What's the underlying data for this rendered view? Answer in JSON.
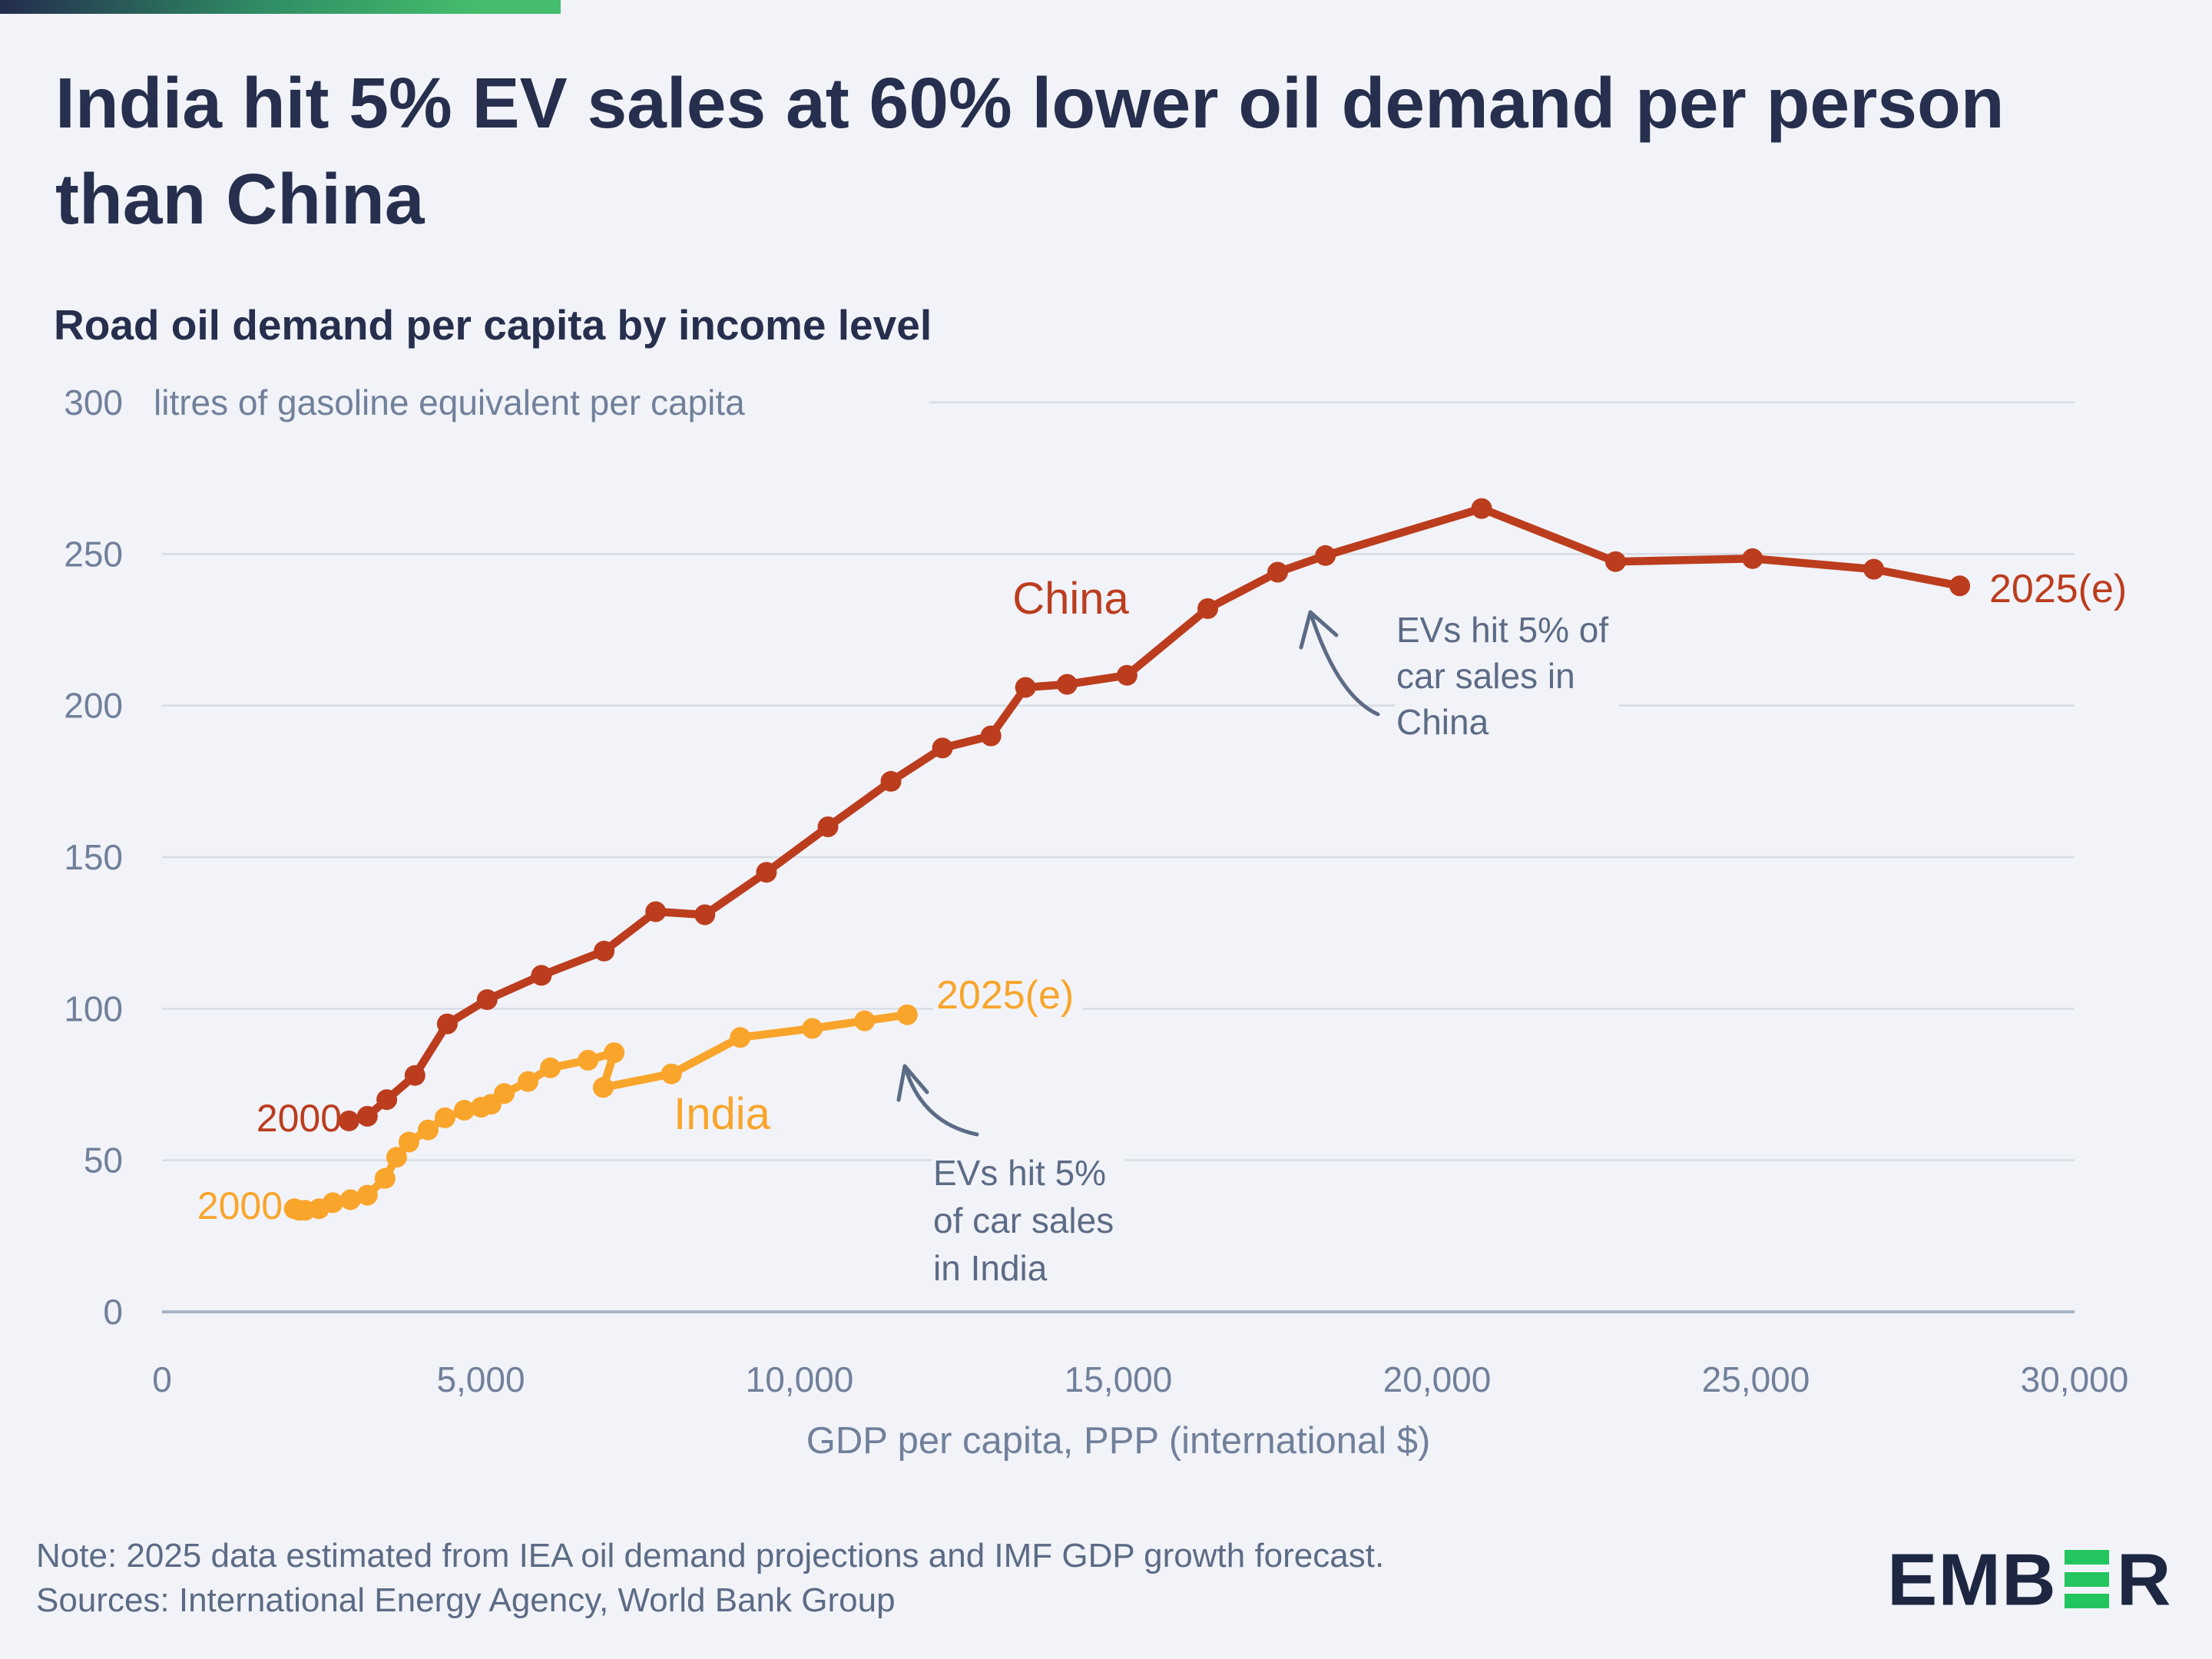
{
  "header": {
    "title": "India hit 5% EV sales at 60% lower oil demand per person\nthan China",
    "subtitle": "Road oil demand per capita by income level"
  },
  "chart_data": {
    "type": "line",
    "title": "India hit 5% EV sales at 60% lower oil demand per person than China",
    "subtitle": "Road oil demand per capita by income level",
    "unit_label": "litres of gasoline equivalent per capita",
    "xlabel": "GDP per capita, PPP (international $)",
    "xlim": [
      0,
      30000
    ],
    "ylim": [
      0,
      300
    ],
    "grid": true,
    "legend_position": "inline-labels",
    "x_ticks": [
      0,
      5000,
      10000,
      15000,
      20000,
      25000,
      30000
    ],
    "x_tick_labels": [
      "0",
      "5,000",
      "10,000",
      "15,000",
      "20,000",
      "25,000",
      "30,000"
    ],
    "y_ticks": [
      0,
      50,
      100,
      150,
      200,
      250,
      300
    ],
    "colors": {
      "china": "#bb3d1e",
      "india": "#f9a52b",
      "grid": "#d7dce5",
      "axis_line": "#a8b4c7",
      "axis_text": "#71809a",
      "annotation": "#5c6b85"
    },
    "series": [
      {
        "name": "China",
        "color": "#bb3d1e",
        "start_label": "2000",
        "end_label": "2025(e)",
        "points": [
          [
            2931,
            63
          ],
          [
            3221,
            64.5
          ],
          [
            3525,
            70
          ],
          [
            3968,
            78
          ],
          [
            4475,
            95
          ],
          [
            5100,
            103
          ],
          [
            5950,
            111
          ],
          [
            6935,
            119
          ],
          [
            7743,
            132
          ],
          [
            8515,
            131
          ],
          [
            9481,
            145
          ],
          [
            10446,
            160
          ],
          [
            11434,
            175
          ],
          [
            12242,
            186
          ],
          [
            13002,
            190
          ],
          [
            13545,
            206
          ],
          [
            14196,
            207
          ],
          [
            15137,
            210
          ],
          [
            16404,
            232
          ],
          [
            17500,
            244
          ],
          [
            18250,
            249.5
          ],
          [
            20700,
            265
          ],
          [
            22800,
            247.5
          ],
          [
            24950,
            248.5
          ],
          [
            26850,
            245
          ],
          [
            28200,
            239.5
          ]
        ]
      },
      {
        "name": "India",
        "color": "#f9a52b",
        "start_label": "2000",
        "end_label": "2025(e)",
        "points": [
          [
            2075,
            34
          ],
          [
            2150,
            33.5
          ],
          [
            2244,
            33.5
          ],
          [
            2461,
            34
          ],
          [
            2678,
            36
          ],
          [
            2955,
            37
          ],
          [
            3221,
            38.5
          ],
          [
            3498,
            44
          ],
          [
            3679,
            51
          ],
          [
            3872,
            56
          ],
          [
            4174,
            60
          ],
          [
            4439,
            64
          ],
          [
            4741,
            66.5
          ],
          [
            5006,
            67.5
          ],
          [
            5163,
            68.5
          ],
          [
            5368,
            72
          ],
          [
            5742,
            76
          ],
          [
            6091,
            80.5
          ],
          [
            6682,
            83
          ],
          [
            7092,
            85.5
          ],
          [
            6920,
            74
          ],
          [
            7990,
            78.5
          ],
          [
            9070,
            90.5
          ],
          [
            10200,
            93.5
          ],
          [
            11020,
            96
          ],
          [
            11690,
            98
          ]
        ]
      }
    ],
    "annotations": [
      {
        "id": "china",
        "text": "EVs hit 5% of\ncar sales in\nChina",
        "target_point": [
          18250,
          249.5
        ]
      },
      {
        "id": "india",
        "text": "EVs hit 5%\nof car sales\nin India",
        "target_point": [
          11690,
          98
        ]
      }
    ]
  },
  "note": {
    "text": "Note: 2025 data estimated from IEA oil demand projections and IMF GDP growth forecast.\nSources: International Energy Agency, World Bank Group"
  },
  "logo": {
    "pre": "EMB",
    "post": "R"
  }
}
